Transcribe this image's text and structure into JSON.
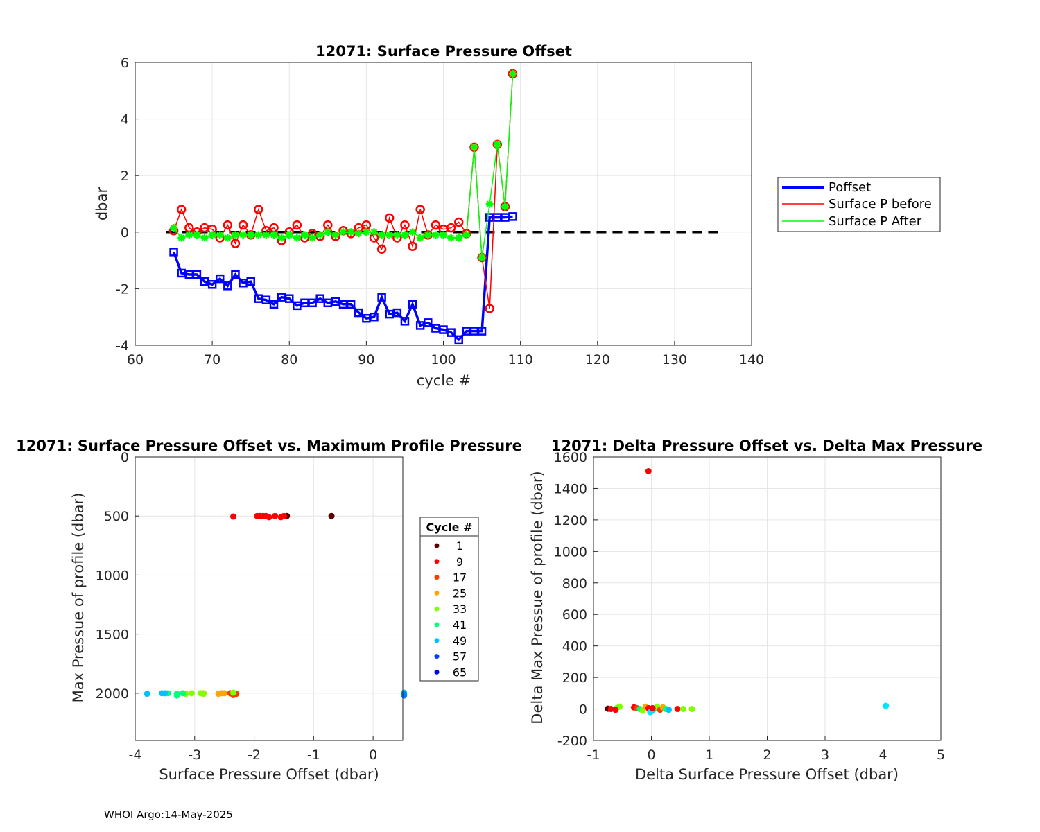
{
  "footer": "WHOI Argo:14-May-2025",
  "chart_data": [
    {
      "type": "line",
      "title": "12071: Surface Pressure Offset",
      "xlabel": "cycle #",
      "ylabel": "dbar",
      "xlim": [
        60,
        140
      ],
      "ylim": [
        -4,
        6
      ],
      "xticks": [
        60,
        70,
        80,
        90,
        100,
        110,
        120,
        130,
        140
      ],
      "yticks": [
        -4,
        -2,
        0,
        2,
        4,
        6
      ],
      "grid": true,
      "legend_position": "right-outside",
      "reference_line": {
        "y": 0,
        "x_range": [
          64,
          136
        ],
        "style": "dashed",
        "color": "#000000"
      },
      "series": [
        {
          "name": "Poffset",
          "color": "#0000ff",
          "marker": "square",
          "x": [
            65,
            66,
            67,
            68,
            69,
            70,
            71,
            72,
            73,
            74,
            75,
            76,
            77,
            78,
            79,
            80,
            81,
            82,
            83,
            84,
            85,
            86,
            87,
            88,
            89,
            90,
            91,
            92,
            93,
            94,
            95,
            96,
            97,
            98,
            99,
            100,
            101,
            102,
            103,
            104,
            105,
            106,
            107,
            108,
            109
          ],
          "y": [
            -0.7,
            -1.45,
            -1.5,
            -1.5,
            -1.75,
            -1.85,
            -1.65,
            -1.9,
            -1.5,
            -1.8,
            -1.75,
            -2.35,
            -2.4,
            -2.55,
            -2.3,
            -2.35,
            -2.6,
            -2.5,
            -2.5,
            -2.35,
            -2.5,
            -2.45,
            -2.55,
            -2.55,
            -2.85,
            -3.05,
            -3.0,
            -2.3,
            -2.9,
            -2.85,
            -3.15,
            -2.55,
            -3.3,
            -3.2,
            -3.4,
            -3.45,
            -3.55,
            -3.8,
            -3.5,
            -3.5,
            -3.5,
            0.52,
            0.52,
            0.52,
            0.55
          ]
        },
        {
          "name": "Surface P before",
          "color": "#ff0000",
          "marker": "circle",
          "x": [
            65,
            66,
            67,
            68,
            69,
            70,
            71,
            72,
            73,
            74,
            75,
            76,
            77,
            78,
            79,
            80,
            81,
            82,
            83,
            84,
            85,
            86,
            87,
            88,
            89,
            90,
            91,
            92,
            93,
            94,
            95,
            96,
            97,
            98,
            99,
            100,
            101,
            102,
            103,
            104,
            105,
            106,
            107,
            108,
            109
          ],
          "y": [
            0.05,
            0.8,
            0.15,
            0.0,
            0.15,
            0.1,
            -0.2,
            0.25,
            -0.4,
            0.25,
            -0.1,
            0.8,
            0.05,
            0.15,
            -0.3,
            0.0,
            0.25,
            -0.2,
            -0.05,
            -0.15,
            0.25,
            -0.15,
            0.05,
            -0.05,
            0.15,
            0.25,
            -0.2,
            -0.6,
            0.5,
            -0.2,
            0.25,
            -0.5,
            0.8,
            -0.1,
            0.25,
            0.1,
            0.15,
            0.35,
            -0.05,
            3.0,
            -0.9,
            -2.7,
            3.1,
            0.9,
            5.6
          ]
        },
        {
          "name": "Surface P After",
          "color": "#00ff00",
          "marker": "asterisk",
          "x": [
            65,
            66,
            67,
            68,
            69,
            70,
            71,
            72,
            73,
            74,
            75,
            76,
            77,
            78,
            79,
            80,
            81,
            82,
            83,
            84,
            85,
            86,
            87,
            88,
            89,
            90,
            91,
            92,
            93,
            94,
            95,
            96,
            97,
            98,
            99,
            100,
            101,
            102,
            103,
            104,
            105,
            106,
            107,
            108,
            109
          ],
          "y": [
            0.15,
            -0.2,
            -0.1,
            -0.1,
            -0.2,
            -0.1,
            -0.1,
            -0.2,
            -0.1,
            -0.1,
            -0.1,
            -0.1,
            -0.1,
            -0.1,
            -0.2,
            -0.1,
            -0.2,
            -0.1,
            -0.2,
            -0.1,
            0.0,
            -0.1,
            0.0,
            0.0,
            -0.05,
            0.0,
            0.0,
            -0.1,
            -0.1,
            -0.1,
            -0.1,
            0.0,
            -0.2,
            -0.1,
            -0.1,
            -0.1,
            -0.2,
            -0.2,
            -0.1,
            3.0,
            -0.9,
            1.0,
            3.1,
            0.9,
            5.6
          ]
        }
      ]
    },
    {
      "type": "scatter",
      "title": "12071: Surface Pressure Offset vs. Maximum Profile Pressure",
      "xlabel": "Surface Pressure Offset (dbar)",
      "ylabel": "Max Pressue of profile (dbar)",
      "xlim": [
        -4,
        0.5
      ],
      "ylim": [
        2400,
        0
      ],
      "y_reversed": true,
      "xticks": [
        -4,
        -3,
        -2,
        -1,
        0
      ],
      "yticks": [
        0,
        500,
        1000,
        1500,
        2000
      ],
      "grid": true,
      "legend_title": "Cycle #",
      "legend_entries": [
        {
          "label": "1",
          "color": "#5a0000"
        },
        {
          "label": "9",
          "color": "#ff0000"
        },
        {
          "label": "17",
          "color": "#ff3a00"
        },
        {
          "label": "25",
          "color": "#ffa500"
        },
        {
          "label": "33",
          "color": "#80ff00"
        },
        {
          "label": "41",
          "color": "#00ff80"
        },
        {
          "label": "49",
          "color": "#00c0ff"
        },
        {
          "label": "57",
          "color": "#0040ff"
        },
        {
          "label": "65",
          "color": "#0000ff"
        }
      ],
      "points": [
        {
          "x": -0.7,
          "y": 500,
          "color": "#5a0000"
        },
        {
          "x": -1.45,
          "y": 500,
          "color": "#5a0000"
        },
        {
          "x": -1.5,
          "y": 500,
          "color": "#ff0000"
        },
        {
          "x": -1.55,
          "y": 510,
          "color": "#ff0000"
        },
        {
          "x": -1.65,
          "y": 500,
          "color": "#ff0000"
        },
        {
          "x": -1.75,
          "y": 510,
          "color": "#ff0000"
        },
        {
          "x": -1.8,
          "y": 500,
          "color": "#ff0000"
        },
        {
          "x": -1.85,
          "y": 500,
          "color": "#ff0000"
        },
        {
          "x": -1.9,
          "y": 500,
          "color": "#ff0000"
        },
        {
          "x": -1.95,
          "y": 500,
          "color": "#ff0000"
        },
        {
          "x": -2.35,
          "y": 505,
          "color": "#ff0000"
        },
        {
          "x": -2.3,
          "y": 2005,
          "color": "#ff3a00"
        },
        {
          "x": -2.35,
          "y": 2015,
          "color": "#ff3a00"
        },
        {
          "x": -2.4,
          "y": 2000,
          "color": "#ff3a00"
        },
        {
          "x": -2.5,
          "y": 2000,
          "color": "#ffa500"
        },
        {
          "x": -2.55,
          "y": 2000,
          "color": "#ffa500"
        },
        {
          "x": -2.6,
          "y": 2005,
          "color": "#ffa500"
        },
        {
          "x": -2.85,
          "y": 2000,
          "color": "#ffa500"
        },
        {
          "x": -2.35,
          "y": 1995,
          "color": "#80ff00"
        },
        {
          "x": -2.85,
          "y": 2005,
          "color": "#80ff00"
        },
        {
          "x": -2.9,
          "y": 2000,
          "color": "#80ff00"
        },
        {
          "x": -3.05,
          "y": 2000,
          "color": "#80ff00"
        },
        {
          "x": -3.15,
          "y": 2005,
          "color": "#80ff00"
        },
        {
          "x": -3.2,
          "y": 2000,
          "color": "#00ff80"
        },
        {
          "x": -3.3,
          "y": 2005,
          "color": "#00ff80"
        },
        {
          "x": -3.3,
          "y": 2020,
          "color": "#00ff80"
        },
        {
          "x": -3.45,
          "y": 2000,
          "color": "#00ff80"
        },
        {
          "x": -3.5,
          "y": 2000,
          "color": "#00c0ff"
        },
        {
          "x": -3.55,
          "y": 2000,
          "color": "#00c0ff"
        },
        {
          "x": -3.8,
          "y": 2005,
          "color": "#00c0ff"
        },
        {
          "x": 0.52,
          "y": 1995,
          "color": "#00c0ff"
        },
        {
          "x": 0.52,
          "y": 2010,
          "color": "#0080ff"
        },
        {
          "x": 0.52,
          "y": 2020,
          "color": "#0080ff"
        }
      ]
    },
    {
      "type": "scatter",
      "title": "12071: Delta Pressure Offset vs. Delta Max Pressure",
      "xlabel": "Delta Surface Pressure Offset (dbar)",
      "ylabel": "Delta Max Pressue of profile (dbar)",
      "xlim": [
        -1,
        5
      ],
      "ylim": [
        -200,
        1600
      ],
      "xticks": [
        -1,
        0,
        1,
        2,
        3,
        4,
        5
      ],
      "yticks": [
        -200,
        0,
        200,
        400,
        600,
        800,
        1000,
        1200,
        1400,
        1600
      ],
      "grid": true,
      "points": [
        {
          "x": -0.05,
          "y": 1510,
          "color": "#ff0000"
        },
        {
          "x": 4.05,
          "y": 20,
          "color": "#00e5ff"
        },
        {
          "x": -0.75,
          "y": 2,
          "color": "#5a0000"
        },
        {
          "x": -0.7,
          "y": 0,
          "color": "#ff0000"
        },
        {
          "x": -0.6,
          "y": 5,
          "color": "#80ff00"
        },
        {
          "x": -0.55,
          "y": 15,
          "color": "#80ff00"
        },
        {
          "x": -0.62,
          "y": -5,
          "color": "#ff0000"
        },
        {
          "x": -0.3,
          "y": 10,
          "color": "#ff0000"
        },
        {
          "x": -0.25,
          "y": 5,
          "color": "#ff3a00"
        },
        {
          "x": -0.2,
          "y": 0,
          "color": "#00ff80"
        },
        {
          "x": -0.15,
          "y": -10,
          "color": "#80ff00"
        },
        {
          "x": -0.1,
          "y": 15,
          "color": "#ffa500"
        },
        {
          "x": -0.05,
          "y": 5,
          "color": "#ff0000"
        },
        {
          "x": 0.0,
          "y": -15,
          "color": "#00c0ff"
        },
        {
          "x": 0.05,
          "y": 0,
          "color": "#00ff80"
        },
        {
          "x": 0.1,
          "y": 15,
          "color": "#80ff00"
        },
        {
          "x": 0.15,
          "y": -5,
          "color": "#ff3a00"
        },
        {
          "x": 0.2,
          "y": 10,
          "color": "#ffa500"
        },
        {
          "x": 0.25,
          "y": 0,
          "color": "#00ff80"
        },
        {
          "x": 0.3,
          "y": -5,
          "color": "#00c0ff"
        },
        {
          "x": 0.45,
          "y": 0,
          "color": "#ff0000"
        },
        {
          "x": 0.55,
          "y": 0,
          "color": "#80ff00"
        },
        {
          "x": 0.7,
          "y": 0,
          "color": "#80ff00"
        },
        {
          "x": -0.02,
          "y": -20,
          "color": "#00e5ff"
        },
        {
          "x": 0.02,
          "y": 5,
          "color": "#ff0000"
        }
      ]
    }
  ]
}
